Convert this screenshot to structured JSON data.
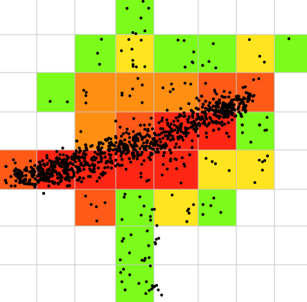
{
  "map": {
    "grid": {
      "columns": 8,
      "rows": 8
    },
    "palette": {
      "0": "#ffffff",
      "1": "#7cfc1a",
      "2": "#ffe51f",
      "3": "#ff8f12",
      "4": "#ff5a17",
      "5": "#ff2714"
    },
    "density_rows": [
      [
        0,
        0,
        0,
        1,
        0,
        0,
        0,
        0
      ],
      [
        0,
        0,
        1,
        2,
        1,
        1,
        2,
        1
      ],
      [
        0,
        1,
        3,
        3,
        3,
        4,
        4,
        0
      ],
      [
        0,
        0,
        3,
        4,
        5,
        5,
        1,
        0
      ],
      [
        4,
        5,
        5,
        5,
        5,
        2,
        2,
        0
      ],
      [
        0,
        0,
        4,
        1,
        2,
        1,
        0,
        0
      ],
      [
        0,
        0,
        0,
        1,
        0,
        0,
        0,
        0
      ],
      [
        0,
        0,
        0,
        1,
        0,
        0,
        0,
        0
      ]
    ],
    "gridline_color": "#c6c6c6",
    "point_color": "#000000",
    "point_cluster": {
      "primary_point_count": 620,
      "scatter_point_count": 170
    }
  }
}
